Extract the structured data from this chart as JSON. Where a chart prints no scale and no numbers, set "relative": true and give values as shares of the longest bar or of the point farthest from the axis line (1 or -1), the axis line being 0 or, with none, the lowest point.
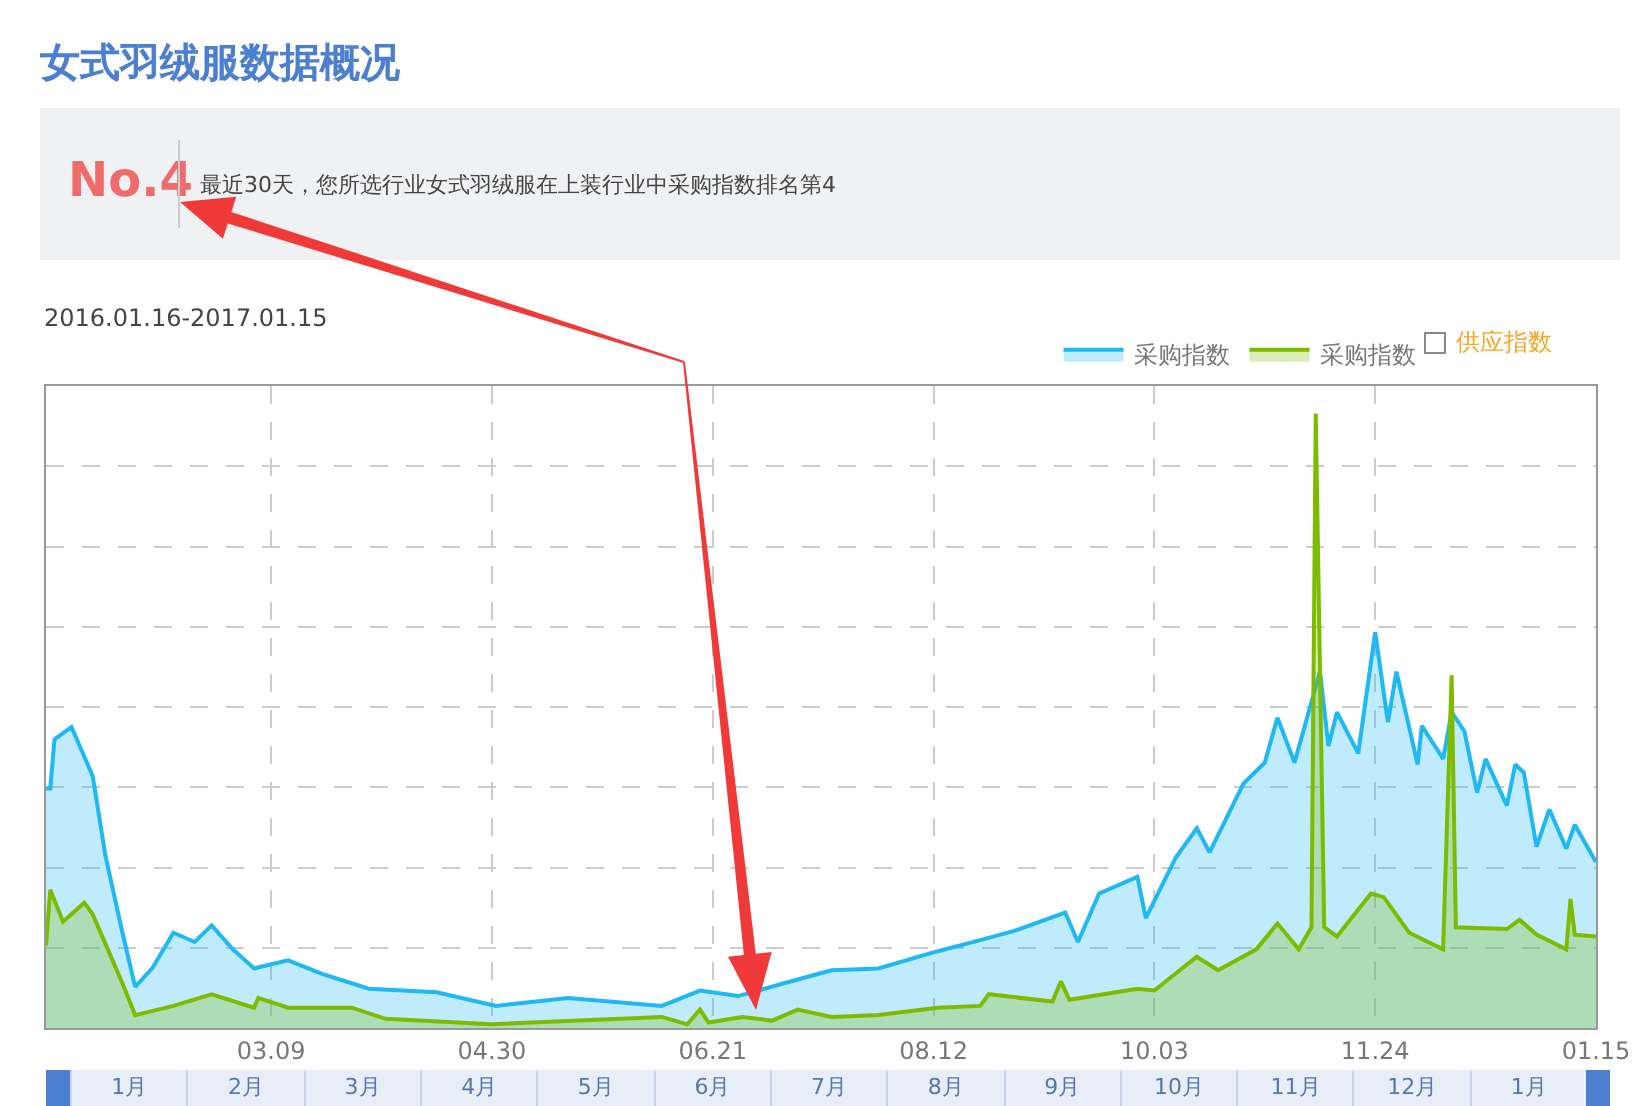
{
  "chart_data": {
    "type": "area",
    "title": "女式羽绒服数据概况",
    "subtitle": "2016.01.16-2017.01.15",
    "relative": true,
    "grid": true,
    "legend": "top right",
    "tick_labels": "x",
    "marker": "none",
    "line_style": "solid",
    "xlim": [
      "2016-01-16",
      "2017-01-15"
    ],
    "xticks": [
      {
        "value": "2016-03-09",
        "label": "03.09"
      },
      {
        "value": "2016-04-30",
        "label": "04.30"
      },
      {
        "value": "2016-06-21",
        "label": "06.21"
      },
      {
        "value": "2016-08-12",
        "label": "08.12"
      },
      {
        "value": "2016-10-03",
        "label": "10.03"
      },
      {
        "value": "2016-11-24",
        "label": "11.24"
      },
      {
        "value": "2017-01-15",
        "label": "01.15"
      }
    ],
    "annotations": [
      "No.4",
      "最近30天，您所选行业女式羽绒服在上装行业中采购指数排名第4",
      "供应指数",
      "1月",
      "2月",
      "3月",
      "4月",
      "5月",
      "6月",
      "7月",
      "8月",
      "9月",
      "10月",
      "11月",
      "12月",
      "1月"
    ],
    "series": [
      {
        "name": "采购指数",
        "color": "#1eb8f5",
        "x": [
          "2016-01-16",
          "2016-01-17",
          "2016-01-18",
          "2016-01-22",
          "2016-01-27",
          "2016-01-30",
          "2016-02-03",
          "2016-02-06",
          "2016-02-10",
          "2016-02-15",
          "2016-02-20",
          "2016-02-24",
          "2016-02-29",
          "2016-03-05",
          "2016-03-13",
          "2016-03-21",
          "2016-04-01",
          "2016-04-17",
          "2016-05-01",
          "2016-05-18",
          "2016-06-09",
          "2016-06-18",
          "2016-06-27",
          "2016-07-11",
          "2016-07-19",
          "2016-07-30",
          "2016-08-13",
          "2016-08-23",
          "2016-08-31",
          "2016-09-12",
          "2016-09-15",
          "2016-09-20",
          "2016-09-29",
          "2016-10-01",
          "2016-10-08",
          "2016-10-13",
          "2016-10-16",
          "2016-10-24",
          "2016-10-29",
          "2016-11-01",
          "2016-11-05",
          "2016-11-11",
          "2016-11-13",
          "2016-11-15",
          "2016-11-20",
          "2016-11-24",
          "2016-11-27",
          "2016-11-29",
          "2016-12-04",
          "2016-12-05",
          "2016-12-10",
          "2016-12-12",
          "2016-12-15",
          "2016-12-18",
          "2016-12-20",
          "2016-12-25",
          "2016-12-27",
          "2016-12-29",
          "2017-01-01",
          "2017-01-04",
          "2017-01-08",
          "2017-01-10",
          "2017-01-15"
        ],
        "values": [
          0.39,
          0.39,
          0.47,
          0.49,
          0.41,
          0.28,
          0.155,
          0.067,
          0.097,
          0.155,
          0.14,
          0.167,
          0.128,
          0.097,
          0.11,
          0.088,
          0.064,
          0.058,
          0.036,
          0.049,
          0.036,
          0.061,
          0.052,
          0.079,
          0.094,
          0.097,
          0.125,
          0.143,
          0.158,
          0.188,
          0.14,
          0.219,
          0.246,
          0.179,
          0.277,
          0.325,
          0.286,
          0.398,
          0.432,
          0.505,
          0.432,
          0.58,
          0.459,
          0.514,
          0.447,
          0.644,
          0.498,
          0.58,
          0.429,
          0.492,
          0.438,
          0.514,
          0.483,
          0.383,
          0.438,
          0.362,
          0.429,
          0.416,
          0.295,
          0.356,
          0.292,
          0.331,
          0.27
        ]
      },
      {
        "name": "采购指数",
        "color": "#7cbb00",
        "x": [
          "2016-01-16",
          "2016-01-17",
          "2016-01-20",
          "2016-01-25",
          "2016-01-27",
          "2016-02-03",
          "2016-02-06",
          "2016-02-15",
          "2016-02-24",
          "2016-03-05",
          "2016-03-06",
          "2016-03-13",
          "2016-03-28",
          "2016-04-05",
          "2016-04-30",
          "2016-06-09",
          "2016-06-15",
          "2016-06-18",
          "2016-06-20",
          "2016-06-28",
          "2016-07-05",
          "2016-07-11",
          "2016-07-19",
          "2016-07-30",
          "2016-08-13",
          "2016-08-23",
          "2016-08-25",
          "2016-09-09",
          "2016-09-11",
          "2016-09-13",
          "2016-09-29",
          "2016-10-03",
          "2016-10-13",
          "2016-10-18",
          "2016-10-27",
          "2016-11-01",
          "2016-11-06",
          "2016-11-09",
          "2016-11-10",
          "2016-11-12",
          "2016-11-15",
          "2016-11-23",
          "2016-11-26",
          "2016-12-02",
          "2016-12-10",
          "2016-12-12",
          "2016-12-13",
          "2016-12-25",
          "2016-12-28",
          "2017-01-01",
          "2017-01-08",
          "2017-01-09",
          "2017-01-10",
          "2017-01-15"
        ],
        "values": [
          0.134,
          0.225,
          0.173,
          0.204,
          0.185,
          0.073,
          0.021,
          0.036,
          0.055,
          0.033,
          0.049,
          0.033,
          0.033,
          0.015,
          0.006,
          0.018,
          0.006,
          0.03,
          0.009,
          0.018,
          0.012,
          0.03,
          0.018,
          0.021,
          0.033,
          0.036,
          0.055,
          0.043,
          0.076,
          0.046,
          0.064,
          0.061,
          0.116,
          0.094,
          0.128,
          0.17,
          0.128,
          0.164,
          1.0,
          0.164,
          0.149,
          0.219,
          0.213,
          0.155,
          0.128,
          0.574,
          0.164,
          0.161,
          0.176,
          0.152,
          0.128,
          0.21,
          0.152,
          0.149
        ]
      }
    ]
  }
}
